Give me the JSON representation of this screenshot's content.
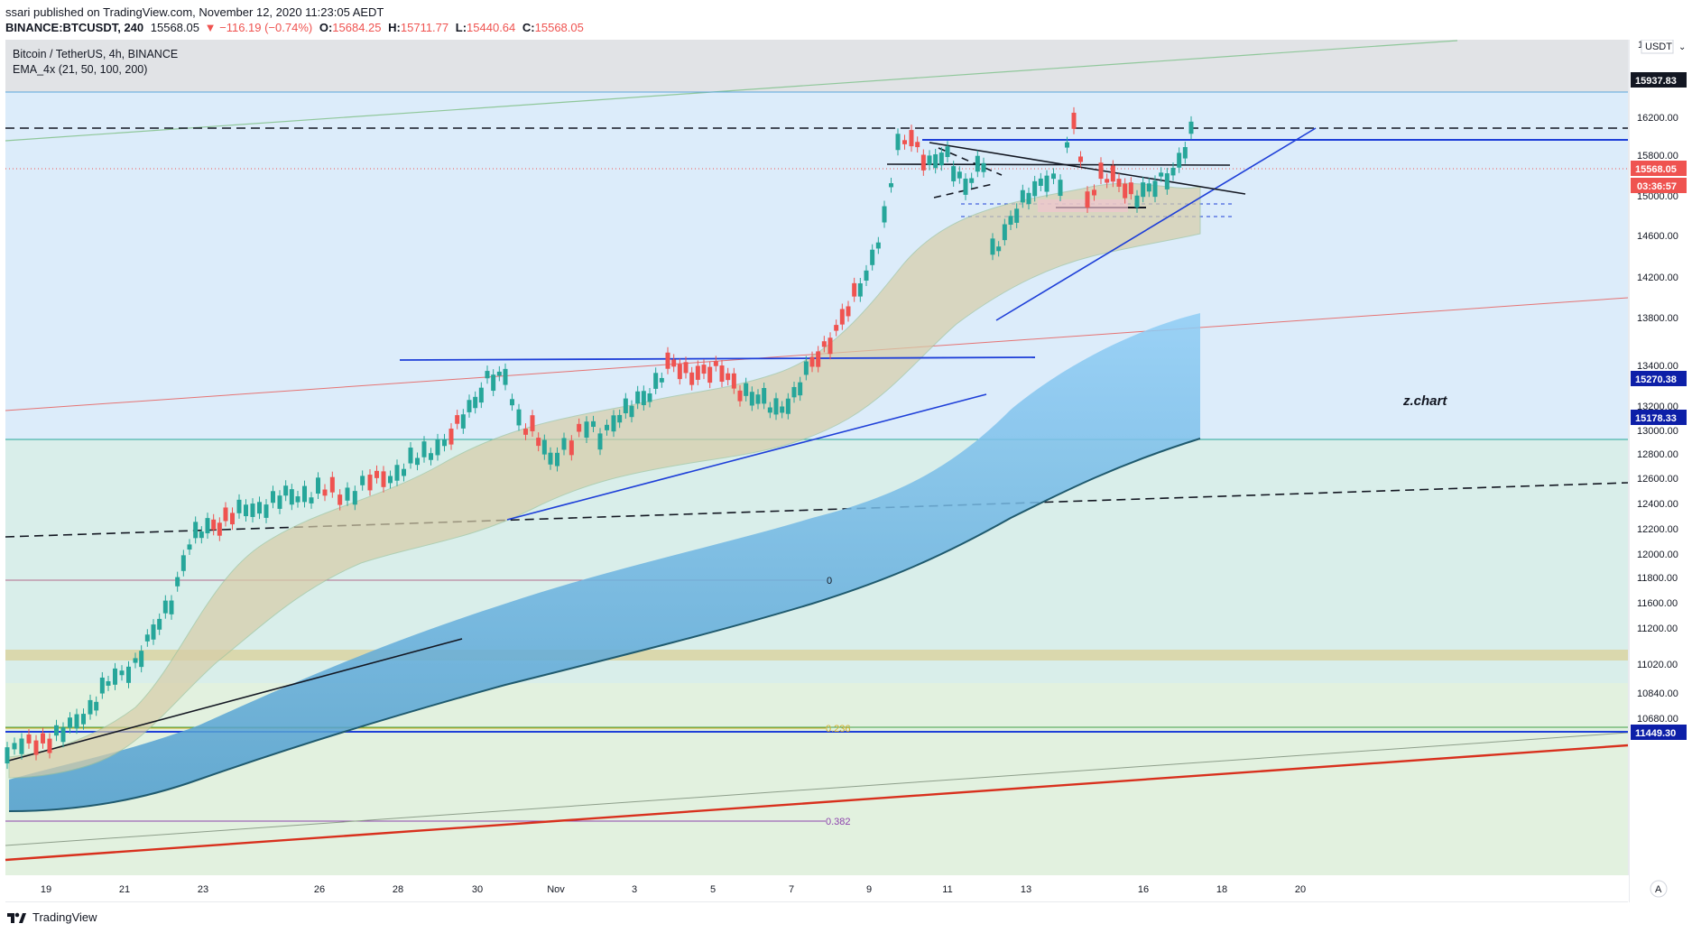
{
  "publish_line": "ssari published on TradingView.com, November 12, 2020 11:23:05 AEDT",
  "ticker": {
    "symbol": "BINANCE:BTCUSDT, 240",
    "last": "15568.05",
    "change": "▼ −116.19 (−0.74%)",
    "open_label": "O:",
    "open": "15684.25",
    "high_label": "H:",
    "high": "15711.77",
    "low_label": "L:",
    "low": "15440.64",
    "close_label": "C:",
    "close": "15568.05"
  },
  "legend": {
    "title": "Bitcoin / TetherUS, 4h, BINANCE",
    "indicator": "EMA_4x (21, 50, 100, 200)"
  },
  "price_scale": {
    "currency": "USDT",
    "currency_icon": "chevron-down-icon",
    "ticks": [
      "16200.00",
      "15800.00",
      "15000.00",
      "14600.00",
      "14200.00",
      "13800.00",
      "13400.00",
      "13200.00",
      "13000.00",
      "12800.00",
      "12600.00",
      "12400.00",
      "12200.00",
      "12000.00",
      "11800.00",
      "11600.00",
      "11200.00",
      "11020.00",
      "10840.00",
      "10680.00"
    ],
    "badges": {
      "top_level": "15937.83",
      "last_price": "15568.05",
      "countdown": "03:36:57",
      "level_a": "15270.38",
      "level_b": "15178.33",
      "level_c": "11449.30"
    },
    "auto_button": "A"
  },
  "time_scale": {
    "ticks": [
      "19",
      "21",
      "23",
      "26",
      "28",
      "30",
      "Nov",
      "3",
      "5",
      "7",
      "9",
      "11",
      "13",
      "16",
      "18",
      "20"
    ]
  },
  "fib_labels": {
    "zero": "0",
    "f236": "0.236",
    "f382": "0.382"
  },
  "watermark": "z.chart",
  "brand": "TradingView",
  "colors": {
    "up": "#26a69a",
    "down": "#ef5350",
    "trend_blue": "#1e3fd8",
    "dark_badge": "#131722",
    "blue_badge": "#0d1fa8",
    "ema_band": "#5aa6d9"
  }
}
